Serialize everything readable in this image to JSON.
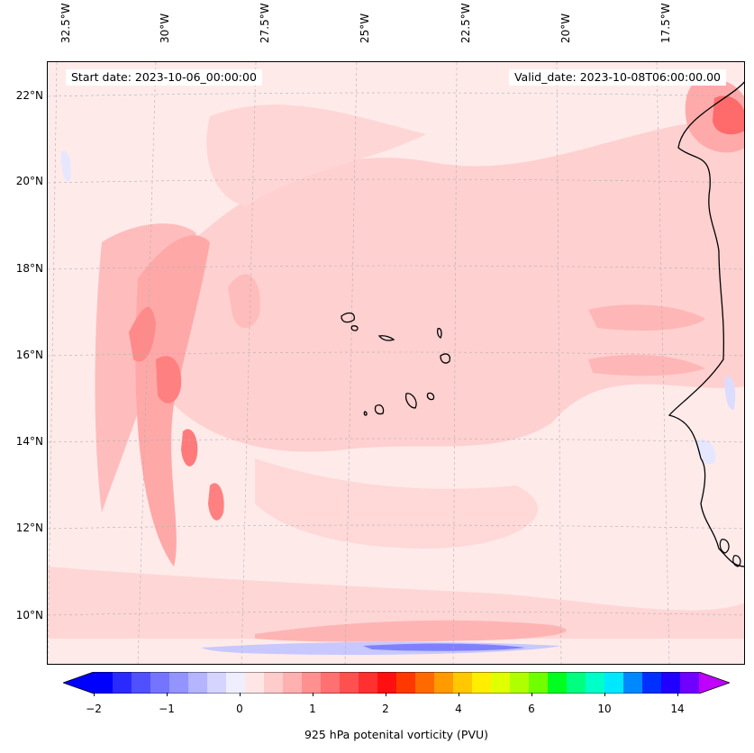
{
  "map": {
    "start_date": "Start date: 2023-10-06_00:00:00",
    "valid_date": "Valid_date: 2023-10-08T06:00:00.00",
    "lon_labels": [
      "32.5°W",
      "30°W",
      "27.5°W",
      "25°W",
      "22.5°W",
      "20°W",
      "17.5°W"
    ],
    "lat_labels": [
      "22°N",
      "20°N",
      "18°N",
      "16°N",
      "14°N",
      "12°N",
      "10°N"
    ],
    "islands_label": ""
  },
  "colorbar": {
    "title": "925 hPa potenital vorticity (PVU)",
    "tick_labels": [
      "−2",
      "−1",
      "0",
      "1",
      "2",
      "4",
      "6",
      "10",
      "14"
    ],
    "colors": [
      "#0000ff",
      "#2a2aff",
      "#5050ff",
      "#7474ff",
      "#9494ff",
      "#b4b4ff",
      "#d4d4ff",
      "#eeeeff",
      "#ffe6e6",
      "#ffcccc",
      "#ffb0b0",
      "#ff9090",
      "#ff7070",
      "#ff5050",
      "#ff3030",
      "#ff1010",
      "#ff3800",
      "#ff6a00",
      "#ff9a00",
      "#ffc800",
      "#ffee00",
      "#e0ff00",
      "#b0ff00",
      "#70ff00",
      "#00ff20",
      "#00ff80",
      "#00ffc8",
      "#00e8ff",
      "#0088ff",
      "#0030ff",
      "#2000ff",
      "#7000ff"
    ],
    "under_color": "#0000ff",
    "over_color": "#c000ff"
  }
}
